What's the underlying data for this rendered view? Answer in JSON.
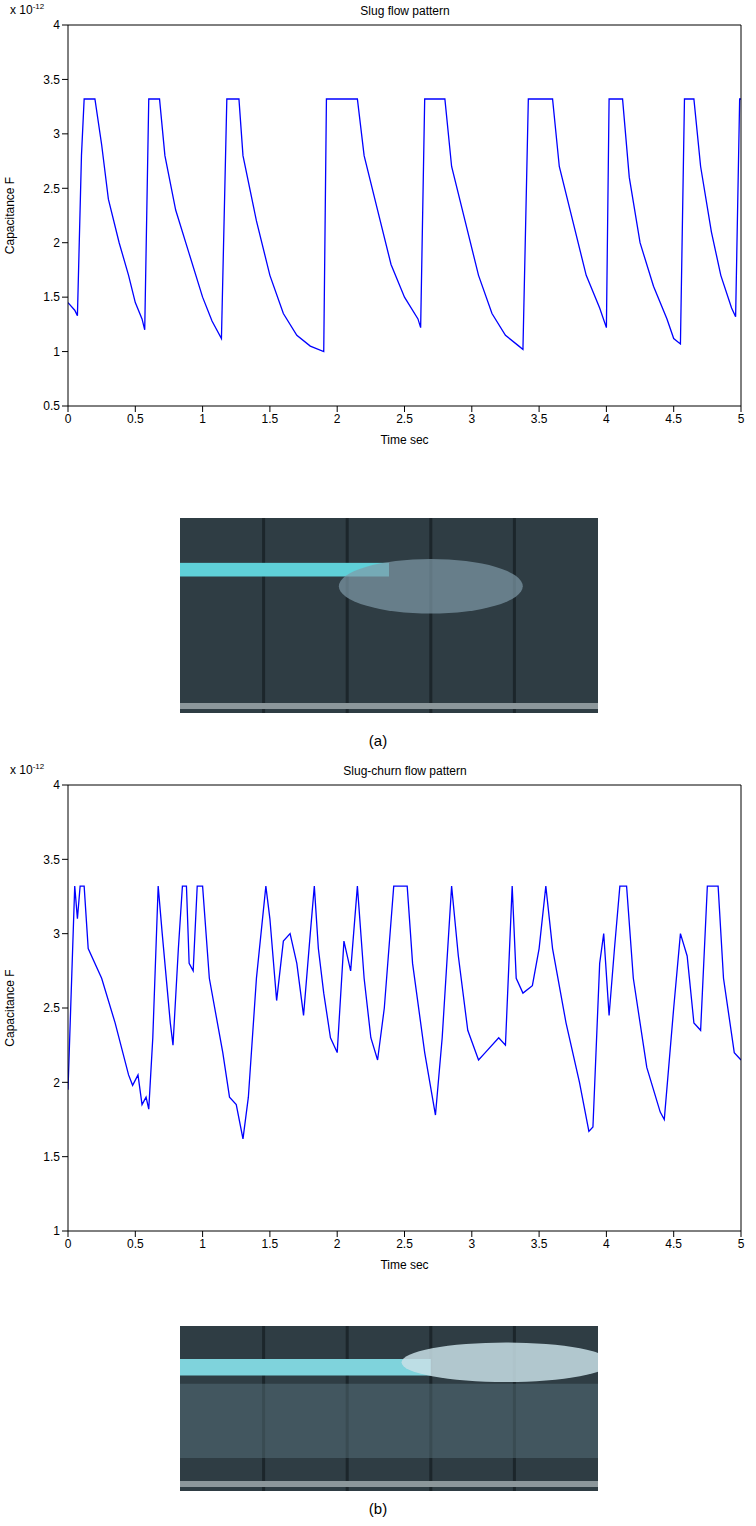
{
  "chart_data": [
    {
      "type": "line",
      "panel": "(a)",
      "title": "Slug flow pattern",
      "xlabel": "Time sec",
      "ylabel": "Capacitance F",
      "y_multiplier": {
        "text": "x 10",
        "superscript": "-12"
      },
      "color": "#0000ff",
      "grid": false,
      "x": [
        0,
        0.05,
        0.07,
        0.1,
        0.12,
        0.2,
        0.25,
        0.3,
        0.38,
        0.45,
        0.5,
        0.55,
        0.57,
        0.6,
        0.68,
        0.72,
        0.8,
        0.9,
        1.0,
        1.07,
        1.14,
        1.18,
        1.27,
        1.3,
        1.4,
        1.5,
        1.6,
        1.7,
        1.8,
        1.9,
        1.92,
        2.15,
        2.2,
        2.3,
        2.4,
        2.5,
        2.6,
        2.62,
        2.65,
        2.8,
        2.85,
        2.95,
        3.05,
        3.15,
        3.25,
        3.35,
        3.38,
        3.42,
        3.6,
        3.65,
        3.75,
        3.85,
        3.95,
        4.0,
        4.02,
        4.12,
        4.17,
        4.25,
        4.35,
        4.45,
        4.5,
        4.55,
        4.58,
        4.65,
        4.7,
        4.78,
        4.85,
        4.93,
        4.96,
        4.99,
        5
      ],
      "values": [
        1.45,
        1.38,
        1.33,
        2.8,
        3.32,
        3.32,
        2.9,
        2.4,
        2.0,
        1.7,
        1.45,
        1.3,
        1.2,
        3.32,
        3.32,
        2.8,
        2.3,
        1.9,
        1.5,
        1.28,
        1.12,
        3.32,
        3.32,
        2.8,
        2.2,
        1.7,
        1.35,
        1.15,
        1.05,
        1.0,
        3.32,
        3.32,
        2.8,
        2.3,
        1.8,
        1.5,
        1.3,
        1.22,
        3.32,
        3.32,
        2.7,
        2.2,
        1.7,
        1.35,
        1.15,
        1.05,
        1.02,
        3.32,
        3.32,
        2.7,
        2.2,
        1.7,
        1.4,
        1.22,
        3.32,
        3.32,
        2.6,
        2.0,
        1.6,
        1.3,
        1.12,
        1.07,
        3.32,
        3.32,
        2.7,
        2.1,
        1.7,
        1.4,
        1.32,
        3.32,
        3.32
      ],
      "xlim": [
        0,
        5
      ],
      "xticks": [
        0,
        0.5,
        1,
        1.5,
        2,
        2.5,
        3,
        3.5,
        4,
        4.5,
        5
      ],
      "ylim": [
        0.5,
        4
      ],
      "yticks": [
        0.5,
        1,
        1.5,
        2,
        2.5,
        3,
        3.5,
        4
      ]
    },
    {
      "type": "line",
      "panel": "(b)",
      "title": "Slug-churn flow pattern",
      "xlabel": "Time sec",
      "ylabel": "Capacitance F",
      "y_multiplier": {
        "text": "x 10",
        "superscript": "-12"
      },
      "color": "#0000ff",
      "grid": false,
      "x": [
        0,
        0.02,
        0.05,
        0.07,
        0.09,
        0.12,
        0.15,
        0.25,
        0.35,
        0.45,
        0.48,
        0.52,
        0.55,
        0.58,
        0.6,
        0.63,
        0.67,
        0.7,
        0.76,
        0.78,
        0.82,
        0.85,
        0.88,
        0.9,
        0.93,
        0.96,
        1.0,
        1.05,
        1.15,
        1.2,
        1.25,
        1.3,
        1.34,
        1.4,
        1.47,
        1.5,
        1.55,
        1.6,
        1.65,
        1.7,
        1.75,
        1.8,
        1.83,
        1.86,
        1.9,
        1.95,
        2.0,
        2.05,
        2.1,
        2.15,
        2.2,
        2.25,
        2.3,
        2.35,
        2.42,
        2.52,
        2.56,
        2.65,
        2.73,
        2.78,
        2.85,
        2.9,
        2.97,
        3.05,
        3.1,
        3.2,
        3.25,
        3.3,
        3.33,
        3.38,
        3.45,
        3.5,
        3.55,
        3.6,
        3.7,
        3.8,
        3.87,
        3.9,
        3.95,
        3.98,
        4.02,
        4.06,
        4.1,
        4.15,
        4.2,
        4.3,
        4.4,
        4.43,
        4.5,
        4.55,
        4.6,
        4.65,
        4.7,
        4.75,
        4.83,
        4.87,
        4.95,
        5
      ],
      "values": [
        1.95,
        2.5,
        3.32,
        3.1,
        3.32,
        3.32,
        2.9,
        2.7,
        2.4,
        2.05,
        1.98,
        2.05,
        1.85,
        1.9,
        1.82,
        2.3,
        3.32,
        3.0,
        2.4,
        2.25,
        2.9,
        3.32,
        3.32,
        2.8,
        2.75,
        3.32,
        3.32,
        2.7,
        2.2,
        1.9,
        1.85,
        1.62,
        1.9,
        2.7,
        3.32,
        3.1,
        2.55,
        2.95,
        3.0,
        2.8,
        2.45,
        3.0,
        3.32,
        2.9,
        2.6,
        2.3,
        2.2,
        2.95,
        2.75,
        3.32,
        2.7,
        2.3,
        2.15,
        2.5,
        3.32,
        3.32,
        2.8,
        2.2,
        1.78,
        2.3,
        3.32,
        2.85,
        2.35,
        2.15,
        2.2,
        2.3,
        2.25,
        3.32,
        2.7,
        2.6,
        2.65,
        2.9,
        3.32,
        2.9,
        2.4,
        2.0,
        1.67,
        1.7,
        2.8,
        3.0,
        2.45,
        2.9,
        3.32,
        3.32,
        2.7,
        2.1,
        1.8,
        1.75,
        2.5,
        3.0,
        2.85,
        2.4,
        2.35,
        3.32,
        3.32,
        2.7,
        2.2,
        2.15
      ],
      "xlim": [
        0,
        5
      ],
      "xticks": [
        0,
        0.5,
        1,
        1.5,
        2,
        2.5,
        3,
        3.5,
        4,
        4.5,
        5
      ],
      "ylim": [
        1,
        4
      ],
      "yticks": [
        1,
        1.5,
        2,
        2.5,
        3,
        3.5,
        4
      ]
    }
  ]
}
